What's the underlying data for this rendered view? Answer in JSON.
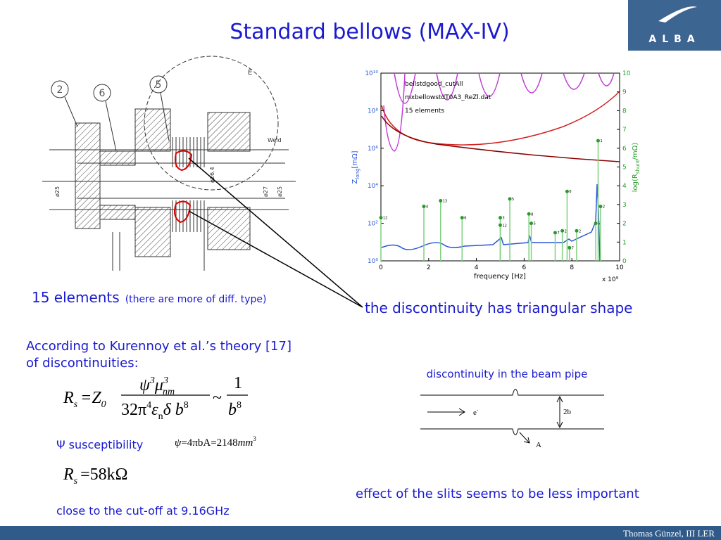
{
  "title": "Standard bellows (MAX-IV)",
  "logo": "ALBA",
  "drawing": {
    "callouts": [
      "2",
      "6",
      "5"
    ],
    "labels": [
      "E",
      "Weld",
      "ø25",
      "ø26.4",
      "ø27",
      "ø25"
    ]
  },
  "plot": {
    "legend": [
      "bellstdgood_cutAll",
      "mxbellowstdT0A3_ReZl.dat",
      "15 elements"
    ],
    "xlabel": "frequency [Hz]",
    "xmultiplier": "x 10⁹",
    "ylabel": [
      "Z",
      "long",
      "[mΩ]"
    ],
    "y2label": [
      "log(R",
      "shunt",
      "/mΩ)"
    ],
    "xlim": [
      0,
      10
    ],
    "xticks": [
      0,
      2,
      4,
      6,
      8,
      10
    ],
    "ylim": [
      1,
      10000000000
    ],
    "log_y": true,
    "yticks": [
      {
        "value": 1,
        "label": "10⁰"
      },
      {
        "value": 100,
        "label": "10²"
      },
      {
        "value": 10000,
        "label": "10⁴"
      },
      {
        "value": 1000000,
        "label": "10⁶"
      },
      {
        "value": 100000000,
        "label": "10⁸"
      },
      {
        "value": 10000000000,
        "label": "10¹⁰"
      }
    ],
    "y2lim": [
      0,
      10
    ],
    "y2ticks": [
      0,
      1,
      2,
      3,
      4,
      5,
      6,
      7,
      8,
      9,
      10
    ],
    "peaks": {
      "x": [
        0.0,
        1.8,
        2.5,
        3.4,
        5.0,
        5.0,
        5.4,
        6.2,
        6.3,
        7.3,
        7.6,
        7.8,
        7.9,
        8.2,
        9.0,
        9.1,
        9.2
      ],
      "y2": [
        2.3,
        2.9,
        3.2,
        2.3,
        2.3,
        1.9,
        3.3,
        2.5,
        2.0,
        1.5,
        1.6,
        3.7,
        0.7,
        1.6,
        2.0,
        6.4,
        2.9
      ],
      "labels": [
        "12",
        "4",
        "13",
        "6",
        "3",
        "12",
        "5",
        "8",
        "5",
        "7",
        "2",
        "6",
        "7",
        "2",
        "6",
        "1",
        "2"
      ]
    }
  },
  "notes": {
    "elements": "15 elements",
    "elements_note": "(there are more of diff. type)",
    "triangular": "the discontinuity has triangular shape",
    "theory": "According to Kurennoy et al.’s theory [17]",
    "theory2": "of discontinuities:",
    "psi": "Ψ susceptibility",
    "cutoff": "close to the cut-off at 9.16GHz",
    "slits": "effect of the slits seems to be less important"
  },
  "eq1": [
    "R",
    "s",
    "=Z",
    "0",
    "ψ",
    "3",
    "μ",
    "3",
    "nm",
    "32π",
    "4",
    "ε",
    "n",
    "δ b",
    "8",
    "~",
    "1",
    "b",
    "8"
  ],
  "eq2": [
    "ψ",
    "=4πbA",
    "=2148",
    "mm",
    "3"
  ],
  "eq3": [
    "R",
    "s",
    "=58kΩ"
  ],
  "pipe": {
    "title": "discontinuity in the beam pipe",
    "particle": "e",
    "charge": "-",
    "gap": "2b",
    "point": "A"
  },
  "footer": "Thomas Günzel, III LER"
}
